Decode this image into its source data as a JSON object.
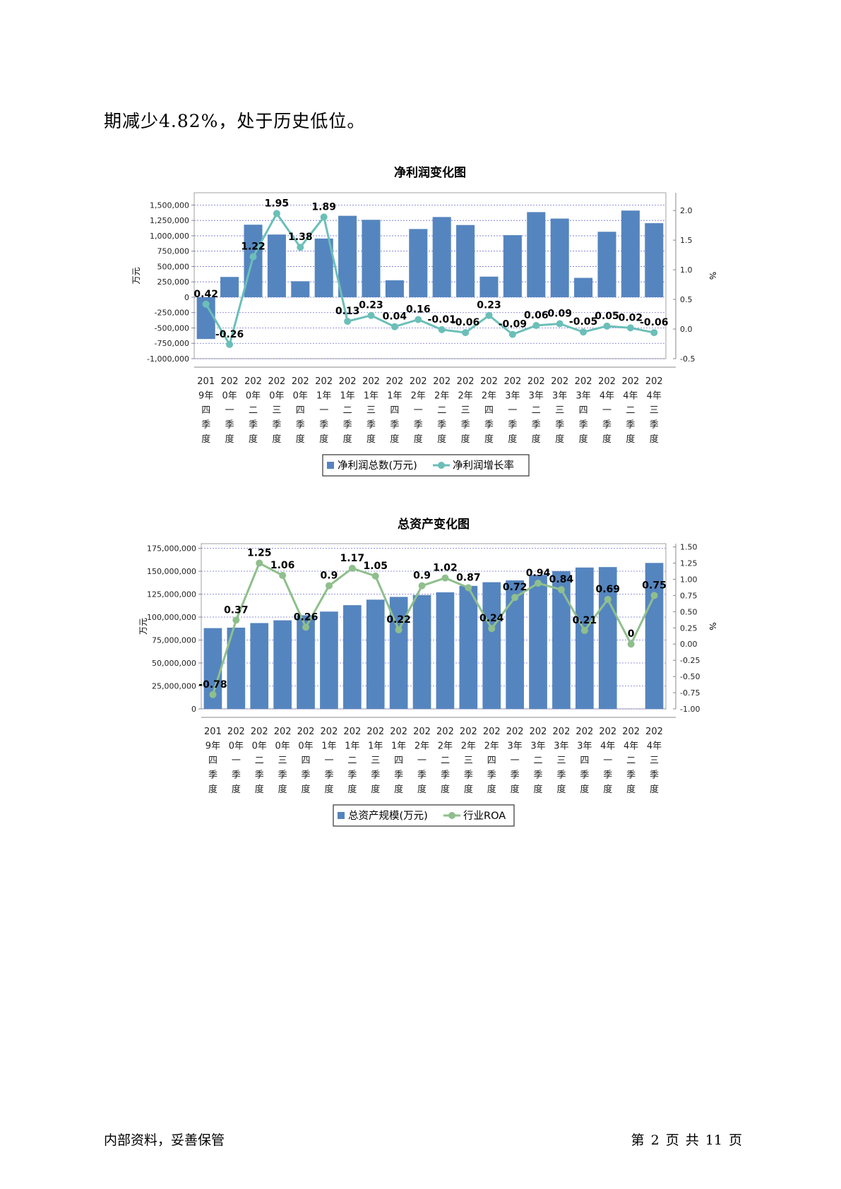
{
  "intro_text": "期减少4.82%，处于历史低位。",
  "footer": {
    "left": "内部资料，妥善保管",
    "right": "第 2 页   共 11 页"
  },
  "colors": {
    "bar": "#5585bf",
    "line1": "#6bbfb8",
    "line2": "#8fbf8c"
  },
  "chart_data": [
    {
      "type": "bar",
      "title": "净利润变化图",
      "ylabel": "万元",
      "y2label": "%",
      "ylim": [
        -1000000,
        1700000
      ],
      "y2lim": [
        -0.5,
        2.3
      ],
      "yticks": [
        "1,500,000",
        "1,250,000",
        "1,000,000",
        "750,000",
        "500,000",
        "250,000",
        "0",
        "-250,000",
        "-500,000",
        "-750,000",
        "-1,000,000"
      ],
      "y2ticks": [
        "2.0",
        "1.5",
        "1.0",
        "0.5",
        "0.0",
        "-0.5"
      ],
      "categories": [
        [
          "201",
          "9年",
          "四",
          "季",
          "度"
        ],
        [
          "202",
          "0年",
          "一",
          "季",
          "度"
        ],
        [
          "202",
          "0年",
          "二",
          "季",
          "度"
        ],
        [
          "202",
          "0年",
          "三",
          "季",
          "度"
        ],
        [
          "202",
          "0年",
          "四",
          "季",
          "度"
        ],
        [
          "202",
          "1年",
          "一",
          "季",
          "度"
        ],
        [
          "202",
          "1年",
          "二",
          "季",
          "度"
        ],
        [
          "202",
          "1年",
          "三",
          "季",
          "度"
        ],
        [
          "202",
          "1年",
          "四",
          "季",
          "度"
        ],
        [
          "202",
          "2年",
          "一",
          "季",
          "度"
        ],
        [
          "202",
          "2年",
          "二",
          "季",
          "度"
        ],
        [
          "202",
          "2年",
          "三",
          "季",
          "度"
        ],
        [
          "202",
          "2年",
          "四",
          "季",
          "度"
        ],
        [
          "202",
          "3年",
          "一",
          "季",
          "度"
        ],
        [
          "202",
          "3年",
          "二",
          "季",
          "度"
        ],
        [
          "202",
          "3年",
          "三",
          "季",
          "度"
        ],
        [
          "202",
          "3年",
          "四",
          "季",
          "度"
        ],
        [
          "202",
          "4年",
          "一",
          "季",
          "度"
        ],
        [
          "202",
          "4年",
          "二",
          "季",
          "度"
        ],
        [
          "202",
          "4年",
          "三",
          "季",
          "度"
        ]
      ],
      "series": [
        {
          "name": "净利润总数(万元)",
          "kind": "bar",
          "values": [
            -680000,
            330000,
            1180000,
            1020000,
            260000,
            955000,
            1325000,
            1260000,
            275000,
            1110000,
            1305000,
            1175000,
            335000,
            1010000,
            1385000,
            1280000,
            315000,
            1065000,
            1410000,
            1205000
          ]
        },
        {
          "name": "净利润增长率",
          "kind": "line",
          "values": [
            0.42,
            -0.26,
            1.22,
            1.95,
            1.38,
            1.89,
            0.13,
            0.23,
            0.04,
            0.16,
            -0.01,
            -0.06,
            0.23,
            -0.09,
            0.06,
            0.09,
            -0.05,
            0.05,
            0.02,
            -0.06
          ]
        }
      ],
      "legend": "bottom"
    },
    {
      "type": "bar",
      "title": "总资产变化图",
      "ylabel": "万元",
      "y2label": "%",
      "ylim": [
        0,
        180000000
      ],
      "y2lim": [
        -1.0,
        1.55
      ],
      "yticks": [
        "175,000,000",
        "150,000,000",
        "125,000,000",
        "100,000,000",
        "75,000,000",
        "50,000,000",
        "25,000,000",
        "0"
      ],
      "y2ticks": [
        "1.50",
        "1.25",
        "1.00",
        "0.75",
        "0.50",
        "0.25",
        "0.00",
        "-0.25",
        "-0.50",
        "-0.75",
        "-1.00"
      ],
      "categories": [
        [
          "201",
          "9年",
          "四",
          "季",
          "度"
        ],
        [
          "202",
          "0年",
          "一",
          "季",
          "度"
        ],
        [
          "202",
          "0年",
          "二",
          "季",
          "度"
        ],
        [
          "202",
          "0年",
          "三",
          "季",
          "度"
        ],
        [
          "202",
          "0年",
          "四",
          "季",
          "度"
        ],
        [
          "202",
          "1年",
          "一",
          "季",
          "度"
        ],
        [
          "202",
          "1年",
          "二",
          "季",
          "度"
        ],
        [
          "202",
          "1年",
          "三",
          "季",
          "度"
        ],
        [
          "202",
          "1年",
          "四",
          "季",
          "度"
        ],
        [
          "202",
          "2年",
          "一",
          "季",
          "度"
        ],
        [
          "202",
          "2年",
          "二",
          "季",
          "度"
        ],
        [
          "202",
          "2年",
          "三",
          "季",
          "度"
        ],
        [
          "202",
          "2年",
          "四",
          "季",
          "度"
        ],
        [
          "202",
          "3年",
          "一",
          "季",
          "度"
        ],
        [
          "202",
          "3年",
          "二",
          "季",
          "度"
        ],
        [
          "202",
          "3年",
          "三",
          "季",
          "度"
        ],
        [
          "202",
          "3年",
          "四",
          "季",
          "度"
        ],
        [
          "202",
          "4年",
          "一",
          "季",
          "度"
        ],
        [
          "202",
          "4年",
          "二",
          "季",
          "度"
        ],
        [
          "202",
          "4年",
          "三",
          "季",
          "度"
        ]
      ],
      "series": [
        {
          "name": "总资产规模(万元)",
          "kind": "bar",
          "values": [
            88000000,
            88500000,
            93500000,
            96500000,
            102000000,
            106000000,
            113000000,
            119000000,
            122000000,
            124000000,
            127000000,
            134000000,
            138000000,
            140000000,
            146000000,
            150000000,
            154000000,
            154500000,
            null,
            159000000
          ]
        },
        {
          "name": "行业ROA",
          "kind": "line",
          "values": [
            -0.78,
            0.37,
            1.25,
            1.06,
            0.26,
            0.9,
            1.17,
            1.05,
            0.22,
            0.9,
            1.02,
            0.87,
            0.24,
            0.72,
            0.94,
            0.84,
            0.21,
            0.69,
            0,
            0.75
          ]
        }
      ],
      "legend": "bottom"
    }
  ]
}
